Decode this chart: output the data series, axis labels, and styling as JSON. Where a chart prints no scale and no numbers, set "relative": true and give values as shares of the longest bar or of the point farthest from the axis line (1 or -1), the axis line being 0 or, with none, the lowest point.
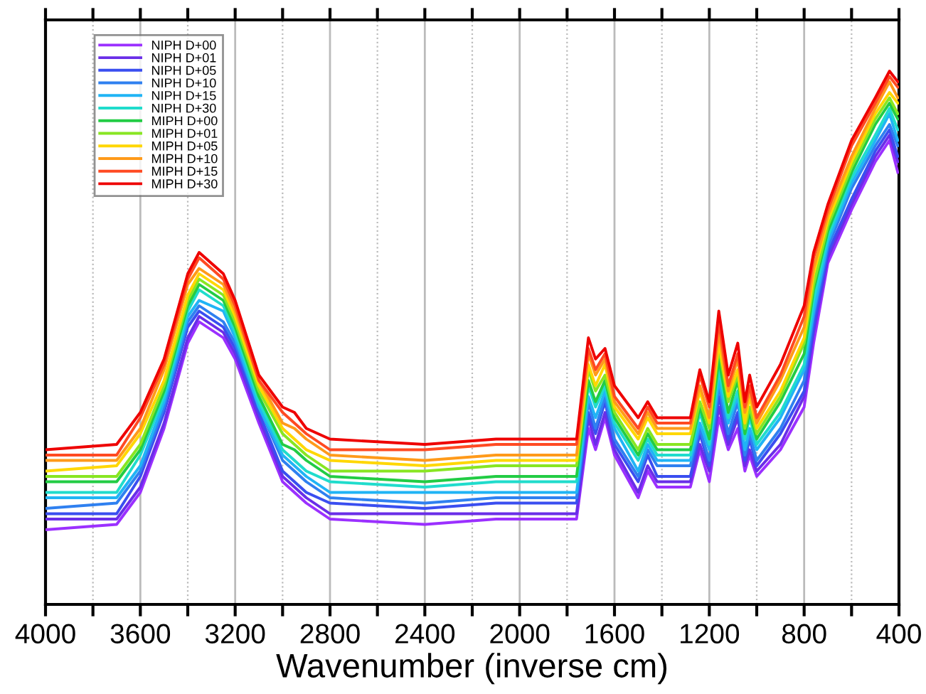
{
  "chart_data": {
    "type": "line",
    "relative": true,
    "xlabel": "Wavenumber (inverse cm)",
    "x": [
      4000,
      3700,
      3600,
      3500,
      3400,
      3352,
      3250,
      3200,
      3100,
      3000,
      2950,
      2900,
      2800,
      2400,
      2100,
      1760,
      1710,
      1680,
      1640,
      1600,
      1500,
      1460,
      1420,
      1280,
      1240,
      1200,
      1160,
      1120,
      1080,
      1050,
      1030,
      1000,
      900,
      800,
      760,
      700,
      600,
      500,
      440,
      405
    ],
    "xlim": [
      4000,
      400
    ],
    "xticks": [
      4000,
      {
        "value": 3800,
        "label": null
      },
      3600,
      {
        "value": 3400,
        "label": null
      },
      3200,
      {
        "value": 3000,
        "label": null
      },
      2800,
      {
        "value": 2600,
        "label": null
      },
      2400,
      {
        "value": 2200,
        "label": null
      },
      2000,
      {
        "value": 1800,
        "label": null
      },
      1600,
      {
        "value": 1400,
        "label": null
      },
      1200,
      {
        "value": 1000,
        "label": null
      },
      800,
      {
        "value": 600,
        "label": null
      },
      400
    ],
    "grid": "x",
    "legend": "top left",
    "tick_labels": "x",
    "line_style": "solid",
    "marker": "none",
    "series": [
      {
        "name": "NIPH D+00",
        "color": "#9b30ff",
        "values": [
          0.14,
          0.15,
          0.21,
          0.33,
          0.49,
          0.53,
          0.5,
          0.46,
          0.34,
          0.23,
          0.21,
          0.19,
          0.16,
          0.15,
          0.16,
          0.16,
          0.33,
          0.29,
          0.35,
          0.28,
          0.2,
          0.25,
          0.22,
          0.22,
          0.29,
          0.23,
          0.35,
          0.29,
          0.33,
          0.25,
          0.28,
          0.24,
          0.29,
          0.37,
          0.49,
          0.64,
          0.74,
          0.83,
          0.87,
          0.81
        ]
      },
      {
        "name": "NIPH D+01",
        "color": "#6a2ee8",
        "values": [
          0.16,
          0.16,
          0.22,
          0.34,
          0.5,
          0.54,
          0.51,
          0.47,
          0.35,
          0.24,
          0.22,
          0.2,
          0.17,
          0.17,
          0.17,
          0.17,
          0.35,
          0.3,
          0.36,
          0.29,
          0.21,
          0.26,
          0.23,
          0.23,
          0.3,
          0.25,
          0.37,
          0.3,
          0.35,
          0.26,
          0.29,
          0.25,
          0.3,
          0.39,
          0.51,
          0.65,
          0.75,
          0.84,
          0.88,
          0.83
        ]
      },
      {
        "name": "NIPH D+05",
        "color": "#3a4ef0",
        "values": [
          0.17,
          0.17,
          0.24,
          0.36,
          0.52,
          0.55,
          0.52,
          0.48,
          0.36,
          0.25,
          0.23,
          0.21,
          0.19,
          0.18,
          0.19,
          0.19,
          0.36,
          0.32,
          0.38,
          0.3,
          0.23,
          0.28,
          0.24,
          0.24,
          0.32,
          0.26,
          0.39,
          0.31,
          0.36,
          0.27,
          0.31,
          0.26,
          0.32,
          0.4,
          0.52,
          0.66,
          0.76,
          0.85,
          0.89,
          0.84
        ]
      },
      {
        "name": "NIPH D+10",
        "color": "#2f80f0",
        "values": [
          0.18,
          0.19,
          0.25,
          0.37,
          0.53,
          0.56,
          0.53,
          0.49,
          0.37,
          0.27,
          0.25,
          0.23,
          0.2,
          0.19,
          0.2,
          0.2,
          0.38,
          0.33,
          0.39,
          0.31,
          0.24,
          0.29,
          0.26,
          0.26,
          0.33,
          0.27,
          0.41,
          0.32,
          0.38,
          0.28,
          0.32,
          0.27,
          0.33,
          0.42,
          0.54,
          0.67,
          0.78,
          0.86,
          0.9,
          0.86
        ]
      },
      {
        "name": "NIPH D+15",
        "color": "#20b4f5",
        "values": [
          0.2,
          0.2,
          0.26,
          0.38,
          0.54,
          0.57,
          0.55,
          0.5,
          0.37,
          0.28,
          0.26,
          0.24,
          0.21,
          0.21,
          0.21,
          0.21,
          0.39,
          0.35,
          0.4,
          0.33,
          0.25,
          0.3,
          0.27,
          0.27,
          0.34,
          0.29,
          0.42,
          0.34,
          0.39,
          0.29,
          0.33,
          0.29,
          0.35,
          0.44,
          0.55,
          0.68,
          0.79,
          0.87,
          0.92,
          0.87
        ]
      },
      {
        "name": "NIPH D+30",
        "color": "#20dccc",
        "values": [
          0.21,
          0.21,
          0.28,
          0.39,
          0.55,
          0.59,
          0.56,
          0.51,
          0.38,
          0.29,
          0.27,
          0.25,
          0.23,
          0.22,
          0.23,
          0.23,
          0.41,
          0.37,
          0.41,
          0.34,
          0.27,
          0.31,
          0.28,
          0.28,
          0.36,
          0.3,
          0.44,
          0.35,
          0.4,
          0.31,
          0.35,
          0.3,
          0.36,
          0.45,
          0.57,
          0.69,
          0.8,
          0.88,
          0.93,
          0.89
        ]
      },
      {
        "name": "MIPH D+00",
        "color": "#22cc44",
        "values": [
          0.23,
          0.23,
          0.29,
          0.4,
          0.56,
          0.6,
          0.57,
          0.52,
          0.39,
          0.3,
          0.29,
          0.27,
          0.24,
          0.23,
          0.24,
          0.24,
          0.42,
          0.38,
          0.42,
          0.35,
          0.28,
          0.32,
          0.29,
          0.29,
          0.37,
          0.31,
          0.46,
          0.36,
          0.42,
          0.32,
          0.36,
          0.31,
          0.38,
          0.47,
          0.59,
          0.7,
          0.81,
          0.9,
          0.94,
          0.91
        ]
      },
      {
        "name": "MIPH D+01",
        "color": "#88e622",
        "values": [
          0.24,
          0.24,
          0.3,
          0.41,
          0.57,
          0.61,
          0.58,
          0.53,
          0.4,
          0.32,
          0.3,
          0.28,
          0.25,
          0.25,
          0.26,
          0.26,
          0.44,
          0.4,
          0.43,
          0.36,
          0.29,
          0.33,
          0.3,
          0.3,
          0.38,
          0.33,
          0.48,
          0.38,
          0.43,
          0.33,
          0.37,
          0.32,
          0.39,
          0.49,
          0.6,
          0.71,
          0.82,
          0.91,
          0.95,
          0.92
        ]
      },
      {
        "name": "MIPH D+05",
        "color": "#ffd700",
        "values": [
          0.25,
          0.26,
          0.32,
          0.42,
          0.58,
          0.62,
          0.59,
          0.54,
          0.41,
          0.33,
          0.31,
          0.29,
          0.27,
          0.26,
          0.27,
          0.27,
          0.45,
          0.41,
          0.45,
          0.37,
          0.31,
          0.35,
          0.32,
          0.32,
          0.4,
          0.34,
          0.49,
          0.39,
          0.44,
          0.34,
          0.39,
          0.33,
          0.4,
          0.5,
          0.62,
          0.72,
          0.83,
          0.92,
          0.96,
          0.94
        ]
      },
      {
        "name": "MIPH D+10",
        "color": "#ff9a1a",
        "values": [
          0.27,
          0.27,
          0.33,
          0.44,
          0.6,
          0.63,
          0.6,
          0.55,
          0.42,
          0.34,
          0.33,
          0.31,
          0.28,
          0.27,
          0.28,
          0.28,
          0.47,
          0.43,
          0.46,
          0.38,
          0.32,
          0.36,
          0.33,
          0.33,
          0.41,
          0.35,
          0.51,
          0.4,
          0.46,
          0.36,
          0.4,
          0.34,
          0.42,
          0.52,
          0.63,
          0.73,
          0.84,
          0.93,
          0.98,
          0.95
        ]
      },
      {
        "name": "MIPH D+15",
        "color": "#ff4a22",
        "values": [
          0.28,
          0.28,
          0.35,
          0.45,
          0.61,
          0.65,
          0.61,
          0.56,
          0.42,
          0.36,
          0.34,
          0.32,
          0.29,
          0.29,
          0.3,
          0.3,
          0.48,
          0.44,
          0.47,
          0.39,
          0.33,
          0.37,
          0.34,
          0.34,
          0.43,
          0.37,
          0.53,
          0.41,
          0.47,
          0.37,
          0.41,
          0.35,
          0.43,
          0.54,
          0.65,
          0.74,
          0.86,
          0.94,
          0.99,
          0.97
        ]
      },
      {
        "name": "MIPH D+30",
        "color": "#ee0000",
        "values": [
          0.29,
          0.3,
          0.36,
          0.46,
          0.62,
          0.66,
          0.62,
          0.57,
          0.43,
          0.37,
          0.36,
          0.33,
          0.31,
          0.3,
          0.31,
          0.31,
          0.5,
          0.46,
          0.48,
          0.41,
          0.35,
          0.38,
          0.35,
          0.35,
          0.44,
          0.38,
          0.55,
          0.43,
          0.49,
          0.38,
          0.43,
          0.37,
          0.45,
          0.56,
          0.66,
          0.75,
          0.87,
          0.95,
          1.0,
          0.98
        ]
      }
    ]
  }
}
